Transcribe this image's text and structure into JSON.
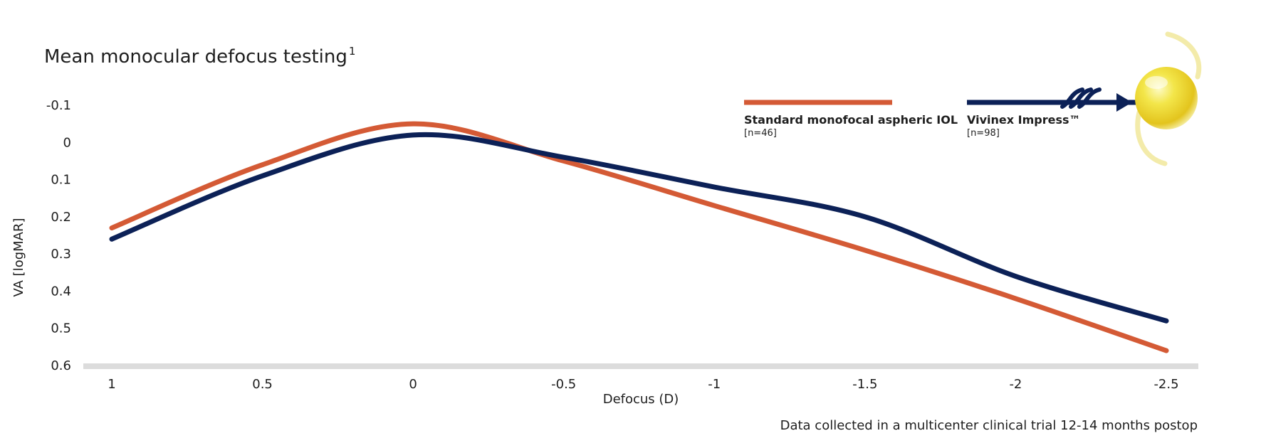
{
  "chart_data": {
    "type": "line",
    "title": "Mean monocular defocus testing",
    "title_superscript": "1",
    "xlabel": "Defocus (D)",
    "ylabel": "VA [logMAR]",
    "x_ticks": [
      "1",
      "0.5",
      "0",
      "-0.5",
      "-1",
      "-1.5",
      "-2",
      "-2.5"
    ],
    "y_ticks": [
      "-0.1",
      "0",
      "0.1",
      "0.2",
      "0.3",
      "0.4",
      "0.5",
      "0.6"
    ],
    "xlim": [
      1,
      -2.5
    ],
    "ylim": [
      -0.1,
      0.6
    ],
    "y_inverted": true,
    "grid": false,
    "legend_position": "top-right",
    "series": [
      {
        "name": "Standard monofocal aspheric IOL",
        "n_label": "[n=46]",
        "color": "#d45a35",
        "x": [
          1,
          0.5,
          0,
          -0.5,
          -1,
          -1.5,
          -2,
          -2.5
        ],
        "y": [
          0.23,
          0.06,
          -0.05,
          0.05,
          0.17,
          0.29,
          0.42,
          0.56
        ]
      },
      {
        "name": "Vivinex Impress™",
        "n_label": "[n=98]",
        "color": "#0c2157",
        "x": [
          1,
          0.5,
          0,
          -0.5,
          -1,
          -1.5,
          -2,
          -2.5
        ],
        "y": [
          0.26,
          0.09,
          -0.02,
          0.04,
          0.12,
          0.2,
          0.36,
          0.48
        ]
      }
    ],
    "footnote": "Data collected in a multicenter clinical trial 12-14 months postop",
    "baseline_color": "#dcdcdc",
    "lens_icon": "intraocular-lens-icon"
  }
}
